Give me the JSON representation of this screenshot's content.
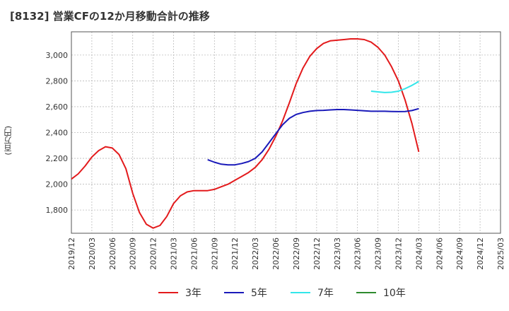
{
  "title": "[8132]  営業CFの12か月移動合計の推移",
  "chart_data": {
    "type": "line",
    "title": "[8132]  営業CFの12か月移動合計の推移",
    "xlabel": "",
    "ylabel": "(百万円)",
    "ylim": [
      1620,
      3180
    ],
    "yticks": [
      1800,
      2000,
      2200,
      2400,
      2600,
      2800,
      3000
    ],
    "ytick_labels": [
      "1,800",
      "2,000",
      "2,200",
      "2,400",
      "2,600",
      "2,800",
      "3,000"
    ],
    "xticks": [
      "2019/12",
      "2020/03",
      "2020/06",
      "2020/09",
      "2020/12",
      "2021/03",
      "2021/06",
      "2021/09",
      "2021/12",
      "2022/03",
      "2022/06",
      "2022/09",
      "2022/12",
      "2023/03",
      "2023/06",
      "2023/09",
      "2023/12",
      "2024/03",
      "2024/06",
      "2024/09",
      "2024/12",
      "2025/03"
    ],
    "grid": true,
    "legend_position": "bottom",
    "series": [
      {
        "name": "3年",
        "color": "#e31a1c",
        "x": [
          "2019/12",
          "2020/01",
          "2020/02",
          "2020/03",
          "2020/04",
          "2020/05",
          "2020/06",
          "2020/07",
          "2020/08",
          "2020/09",
          "2020/10",
          "2020/11",
          "2020/12",
          "2021/01",
          "2021/02",
          "2021/03",
          "2021/04",
          "2021/05",
          "2021/06",
          "2021/07",
          "2021/08",
          "2021/09",
          "2021/10",
          "2021/11",
          "2021/12",
          "2022/01",
          "2022/02",
          "2022/03",
          "2022/04",
          "2022/05",
          "2022/06",
          "2022/07",
          "2022/08",
          "2022/09",
          "2022/10",
          "2022/11",
          "2022/12",
          "2023/01",
          "2023/02",
          "2023/03",
          "2023/04",
          "2023/05",
          "2023/06",
          "2023/07",
          "2023/08",
          "2023/09",
          "2023/10",
          "2023/11",
          "2023/12",
          "2024/01",
          "2024/02",
          "2024/03"
        ],
        "values": [
          2040,
          2080,
          2140,
          2210,
          2260,
          2290,
          2280,
          2230,
          2120,
          1930,
          1780,
          1690,
          1660,
          1680,
          1750,
          1850,
          1910,
          1940,
          1950,
          1950,
          1950,
          1960,
          1980,
          2000,
          2030,
          2060,
          2090,
          2130,
          2190,
          2270,
          2370,
          2490,
          2630,
          2780,
          2900,
          2990,
          3050,
          3090,
          3110,
          3115,
          3120,
          3125,
          3125,
          3120,
          3100,
          3060,
          3000,
          2910,
          2800,
          2650,
          2470,
          2250
        ]
      },
      {
        "name": "5年",
        "color": "#1a1aba",
        "x": [
          "2021/08",
          "2021/09",
          "2021/10",
          "2021/11",
          "2021/12",
          "2022/01",
          "2022/02",
          "2022/03",
          "2022/04",
          "2022/05",
          "2022/06",
          "2022/07",
          "2022/08",
          "2022/09",
          "2022/10",
          "2022/11",
          "2022/12",
          "2023/01",
          "2023/02",
          "2023/03",
          "2023/04",
          "2023/05",
          "2023/06",
          "2023/07",
          "2023/08",
          "2023/09",
          "2023/10",
          "2023/11",
          "2023/12",
          "2024/01",
          "2024/02",
          "2024/03"
        ],
        "values": [
          2190,
          2170,
          2155,
          2150,
          2150,
          2160,
          2175,
          2200,
          2250,
          2320,
          2390,
          2460,
          2510,
          2540,
          2555,
          2565,
          2570,
          2572,
          2575,
          2578,
          2578,
          2575,
          2572,
          2568,
          2565,
          2565,
          2565,
          2563,
          2562,
          2563,
          2570,
          2585
        ]
      },
      {
        "name": "7年",
        "color": "#33e6ea",
        "x": [
          "2023/08",
          "2023/09",
          "2023/10",
          "2023/11",
          "2023/12",
          "2024/01",
          "2024/02",
          "2024/03"
        ],
        "values": [
          2720,
          2715,
          2710,
          2712,
          2720,
          2740,
          2765,
          2795
        ]
      },
      {
        "name": "10年",
        "color": "#2e8b2e",
        "x": [],
        "values": []
      }
    ]
  }
}
